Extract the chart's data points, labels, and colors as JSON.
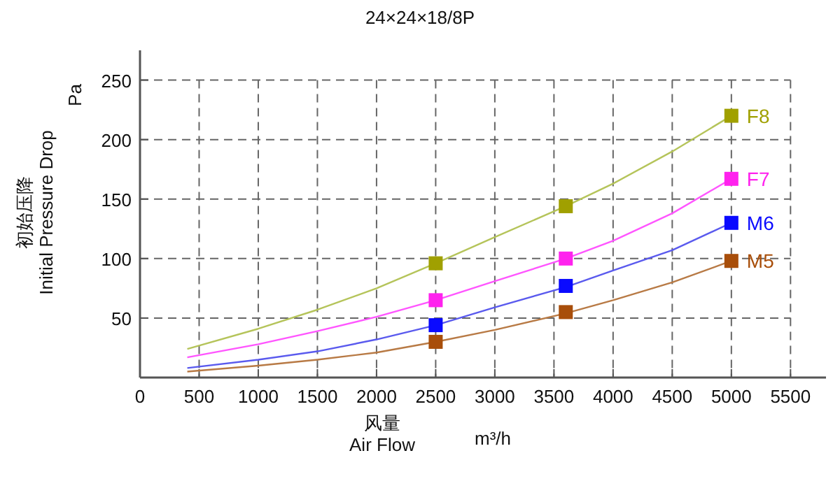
{
  "chart_data": {
    "type": "line",
    "title": "24×24×18/8P",
    "xlabel": "风量\nAir Flow",
    "ylabel": "初始压降\nInitial Pressure Drop",
    "annotations": [
      "Pa",
      "m³/h"
    ],
    "xlim": [
      0,
      5800
    ],
    "xticks": [
      0,
      500,
      1000,
      1500,
      2000,
      2500,
      3000,
      3500,
      4000,
      4500,
      5000,
      5500
    ],
    "ylim": [
      0,
      275
    ],
    "yticks": [
      50,
      100,
      150,
      200,
      250
    ],
    "grid": true,
    "series": [
      {
        "color": "#b5c45a",
        "x": [
          400,
          1000,
          1500,
          2000,
          2500,
          3000,
          3600,
          4000,
          4500,
          5000
        ],
        "values": [
          24,
          41,
          57,
          75,
          96,
          118,
          144,
          163,
          190,
          220
        ]
      },
      {
        "color": "#ff55ff",
        "x": [
          400,
          1000,
          1500,
          2000,
          2500,
          3000,
          3600,
          4000,
          4500,
          5000
        ],
        "values": [
          17,
          28,
          39,
          51,
          65,
          81,
          100,
          115,
          138,
          167
        ]
      },
      {
        "color": "#5a5aee",
        "x": [
          400,
          1000,
          1500,
          2000,
          2500,
          3000,
          3600,
          4000,
          4500,
          5000
        ],
        "values": [
          8,
          15,
          22,
          32,
          44,
          59,
          76,
          90,
          107,
          130
        ]
      },
      {
        "color": "#b87a45",
        "x": [
          400,
          1000,
          1500,
          2000,
          2500,
          3000,
          3600,
          4000,
          4500,
          5000
        ],
        "values": [
          5,
          10,
          15,
          21,
          30,
          40,
          54,
          65,
          80,
          98
        ]
      },
      {
        "type": "scatter",
        "marker": "square",
        "name": "F8",
        "color": "#a0a000",
        "x": [
          2500,
          3600,
          5000
        ],
        "values": [
          96,
          144,
          220
        ]
      },
      {
        "type": "scatter",
        "marker": "square",
        "name": "F7",
        "color": "#ff22ee",
        "x": [
          2500,
          3600,
          5000
        ],
        "values": [
          65,
          100,
          167
        ]
      },
      {
        "type": "scatter",
        "marker": "square",
        "name": "M6",
        "color": "#0a0aff",
        "x": [
          2500,
          3600,
          5000
        ],
        "values": [
          44,
          77,
          130
        ]
      },
      {
        "type": "scatter",
        "marker": "square",
        "name": "M5",
        "color": "#a84e0a",
        "x": [
          2500,
          3600,
          5000
        ],
        "values": [
          30,
          55,
          98
        ]
      }
    ]
  }
}
